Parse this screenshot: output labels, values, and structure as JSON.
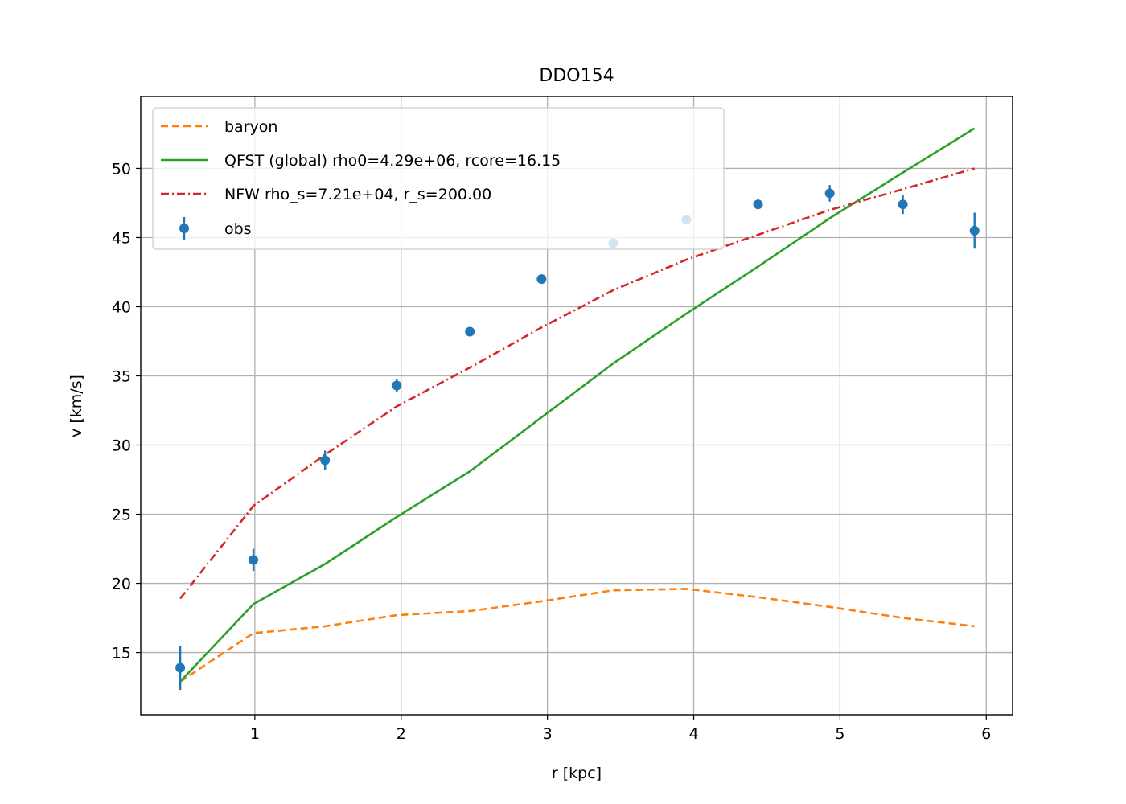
{
  "chart_data": {
    "type": "line",
    "title": "DDO154",
    "xlabel": "r [kpc]",
    "ylabel": "v [km/s]",
    "xlim": [
      0.22,
      6.18
    ],
    "ylim": [
      10.5,
      55.2
    ],
    "xticks": [
      1,
      2,
      3,
      4,
      5,
      6
    ],
    "yticks": [
      15,
      20,
      25,
      30,
      35,
      40,
      45,
      50
    ],
    "grid": true,
    "legend_position": "upper-left",
    "x": [
      0.49,
      0.99,
      1.48,
      1.97,
      2.47,
      2.96,
      3.45,
      3.95,
      4.44,
      4.93,
      5.43,
      5.92
    ],
    "series": [
      {
        "name": "baryon",
        "style": "dashed",
        "color": "#ff7f0e",
        "values": [
          12.9,
          16.4,
          16.9,
          17.7,
          18.0,
          18.7,
          19.5,
          19.6,
          19.0,
          18.3,
          17.5,
          16.9
        ]
      },
      {
        "name": "QFST (global) rho0=4.29e+06, rcore=16.15",
        "style": "solid",
        "color": "#2ca02c",
        "values": [
          12.9,
          18.5,
          21.4,
          24.8,
          28.1,
          32.0,
          35.9,
          39.5,
          42.9,
          46.4,
          49.7,
          52.9
        ]
      },
      {
        "name": "NFW rho_s=7.21e+04, r_s=200.00",
        "style": "dashdot",
        "color": "#d62728",
        "values": [
          18.9,
          25.6,
          29.3,
          32.8,
          35.6,
          38.5,
          41.2,
          43.4,
          45.2,
          47.0,
          48.5,
          50.0
        ]
      }
    ],
    "observations": {
      "name": "obs",
      "color": "#1f77b4",
      "values": [
        13.9,
        21.7,
        28.9,
        34.3,
        38.2,
        42.0,
        44.6,
        46.3,
        47.4,
        48.2,
        47.4,
        45.5
      ],
      "errors": [
        1.6,
        0.8,
        0.7,
        0.5,
        0.3,
        0.25,
        0.3,
        0.3,
        0.35,
        0.6,
        0.7,
        1.3
      ]
    }
  }
}
